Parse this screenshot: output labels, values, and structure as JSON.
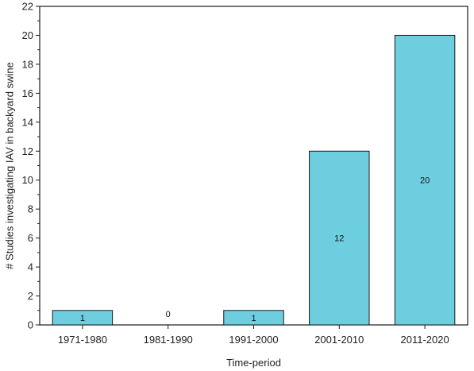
{
  "chart_data": {
    "type": "bar",
    "categories": [
      "1971-1980",
      "1981-1990",
      "1991-2000",
      "2001-2010",
      "2011-2020"
    ],
    "values": [
      1,
      0,
      1,
      12,
      20
    ],
    "data_labels": [
      "1",
      "0",
      "1",
      "12",
      "20"
    ],
    "xlabel": "Time-period",
    "ylabel": "# Studies investigating IAV in backyard swine",
    "ylim": [
      0,
      22
    ],
    "yticks": [
      "0",
      "2",
      "4",
      "6",
      "8",
      "10",
      "12",
      "14",
      "16",
      "18",
      "20",
      "22"
    ],
    "grid": false,
    "legend": "none",
    "colors": {
      "bar_fill": "#6dcedf",
      "bar_stroke": "#1a1a1a",
      "axis": "#1a1a1a"
    }
  }
}
